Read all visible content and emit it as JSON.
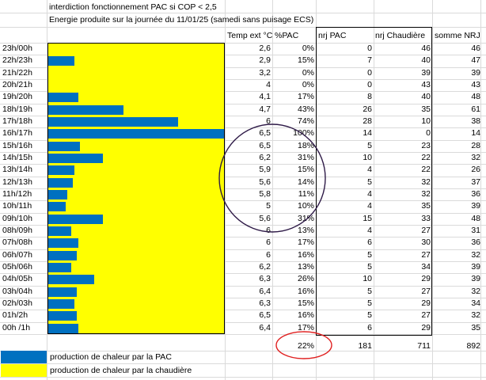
{
  "header": {
    "line1": "interdiction fonctionnement PAC si COP < 2,5",
    "line2": "Energie produite sur la journée du 11/01/25 (samedi sans puisage ECS)"
  },
  "columns": {
    "temp": "Temp ext °C",
    "pct": "%PAC",
    "nrj_pac": "nrj PAC",
    "nrj_chaudiere": "nrj Chaudière",
    "somme": "somme NRJ"
  },
  "rows": [
    {
      "label": "23h/00h",
      "temp": "2,6",
      "pct": "0%",
      "pct_value": 0,
      "pac": "0",
      "chaud": "46",
      "sum": "46"
    },
    {
      "label": "22h/23h",
      "temp": "2,9",
      "pct": "15%",
      "pct_value": 15,
      "pac": "7",
      "chaud": "40",
      "sum": "47"
    },
    {
      "label": "21h/22h",
      "temp": "3,2",
      "pct": "0%",
      "pct_value": 0,
      "pac": "0",
      "chaud": "39",
      "sum": "39"
    },
    {
      "label": "20h/21h",
      "temp": "4",
      "pct": "0%",
      "pct_value": 0,
      "pac": "0",
      "chaud": "43",
      "sum": "43"
    },
    {
      "label": "19h/20h",
      "temp": "4,1",
      "pct": "17%",
      "pct_value": 17,
      "pac": "8",
      "chaud": "40",
      "sum": "48"
    },
    {
      "label": "18h/19h",
      "temp": "4,7",
      "pct": "43%",
      "pct_value": 43,
      "pac": "26",
      "chaud": "35",
      "sum": "61"
    },
    {
      "label": "17h/18h",
      "temp": "6",
      "pct": "74%",
      "pct_value": 74,
      "pac": "28",
      "chaud": "10",
      "sum": "38"
    },
    {
      "label": "16h/17h",
      "temp": "6,5",
      "pct": "100%",
      "pct_value": 100,
      "pac": "14",
      "chaud": "0",
      "sum": "14"
    },
    {
      "label": "15h/16h",
      "temp": "6,5",
      "pct": "18%",
      "pct_value": 18,
      "pac": "5",
      "chaud": "23",
      "sum": "28"
    },
    {
      "label": "14h/15h",
      "temp": "6,2",
      "pct": "31%",
      "pct_value": 31,
      "pac": "10",
      "chaud": "22",
      "sum": "32"
    },
    {
      "label": "13h/14h",
      "temp": "5,9",
      "pct": "15%",
      "pct_value": 15,
      "pac": "4",
      "chaud": "22",
      "sum": "26"
    },
    {
      "label": "12h/13h",
      "temp": "5,6",
      "pct": "14%",
      "pct_value": 14,
      "pac": "5",
      "chaud": "32",
      "sum": "37"
    },
    {
      "label": "11h/12h",
      "temp": "5,8",
      "pct": "11%",
      "pct_value": 11,
      "pac": "4",
      "chaud": "32",
      "sum": "36"
    },
    {
      "label": "10h/11h",
      "temp": "5",
      "pct": "10%",
      "pct_value": 10,
      "pac": "4",
      "chaud": "35",
      "sum": "39"
    },
    {
      "label": "09h/10h",
      "temp": "5,6",
      "pct": "31%",
      "pct_value": 31,
      "pac": "15",
      "chaud": "33",
      "sum": "48"
    },
    {
      "label": "08h/09h",
      "temp": "6",
      "pct": "13%",
      "pct_value": 13,
      "pac": "4",
      "chaud": "27",
      "sum": "31"
    },
    {
      "label": "07h/08h",
      "temp": "6",
      "pct": "17%",
      "pct_value": 17,
      "pac": "6",
      "chaud": "30",
      "sum": "36"
    },
    {
      "label": "06h/07h",
      "temp": "6",
      "pct": "16%",
      "pct_value": 16,
      "pac": "5",
      "chaud": "27",
      "sum": "32"
    },
    {
      "label": "05h/06h",
      "temp": "6,2",
      "pct": "13%",
      "pct_value": 13,
      "pac": "5",
      "chaud": "34",
      "sum": "39"
    },
    {
      "label": "04h/05h",
      "temp": "6,3",
      "pct": "26%",
      "pct_value": 26,
      "pac": "10",
      "chaud": "29",
      "sum": "39"
    },
    {
      "label": "03h/04h",
      "temp": "6,4",
      "pct": "16%",
      "pct_value": 16,
      "pac": "5",
      "chaud": "27",
      "sum": "32"
    },
    {
      "label": "02h/03h",
      "temp": "6,3",
      "pct": "15%",
      "pct_value": 15,
      "pac": "5",
      "chaud": "29",
      "sum": "34"
    },
    {
      "label": "01h/2h",
      "temp": "6,5",
      "pct": "16%",
      "pct_value": 16,
      "pac": "5",
      "chaud": "27",
      "sum": "32"
    },
    {
      "label": "00h /1h",
      "temp": "6,4",
      "pct": "17%",
      "pct_value": 17,
      "pac": "6",
      "chaud": "29",
      "sum": "35"
    }
  ],
  "totals": {
    "pct": "22%",
    "pac": "181",
    "chaud": "711",
    "sum": "892"
  },
  "legend": {
    "pac_label": "production de chaleur par la PAC",
    "chaudiere_label": "production de chaleur par la  chaudière"
  },
  "colors": {
    "pac": "#0070c0",
    "chaudiere": "#ffff00",
    "annotation_circle": "#2e1a47",
    "annotation_ellipse": "#e02020"
  }
}
